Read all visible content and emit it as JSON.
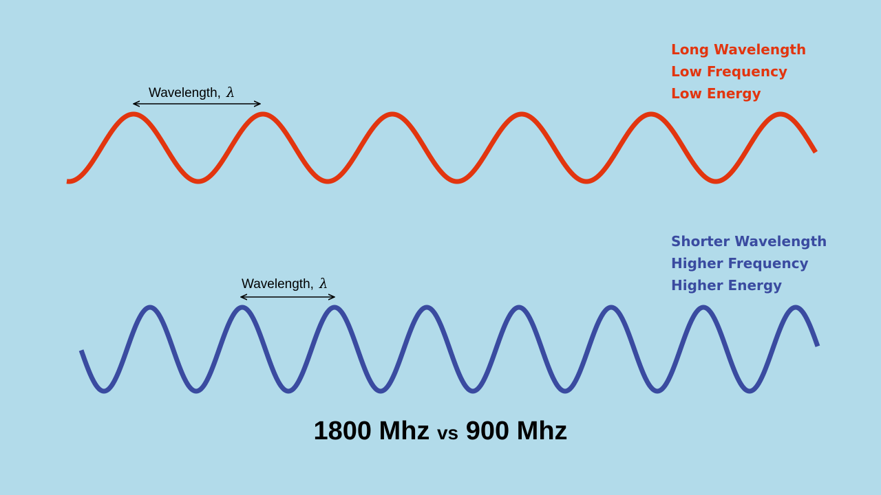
{
  "red_wave": {
    "color": "#e2350f",
    "labels": [
      "Long Wavelength",
      "Low Frequency",
      "Low Energy"
    ],
    "wavelength_label": "Wavelength,",
    "symbol": "λ"
  },
  "blue_wave": {
    "color": "#3a4ba0",
    "labels": [
      "Shorter Wavelength",
      "Higher Frequency",
      "Higher Energy"
    ],
    "wavelength_label": "Wavelength,",
    "symbol": "λ"
  },
  "caption": {
    "left": "1800 Mhz",
    "vs": "vs",
    "right": "900 Mhz"
  }
}
